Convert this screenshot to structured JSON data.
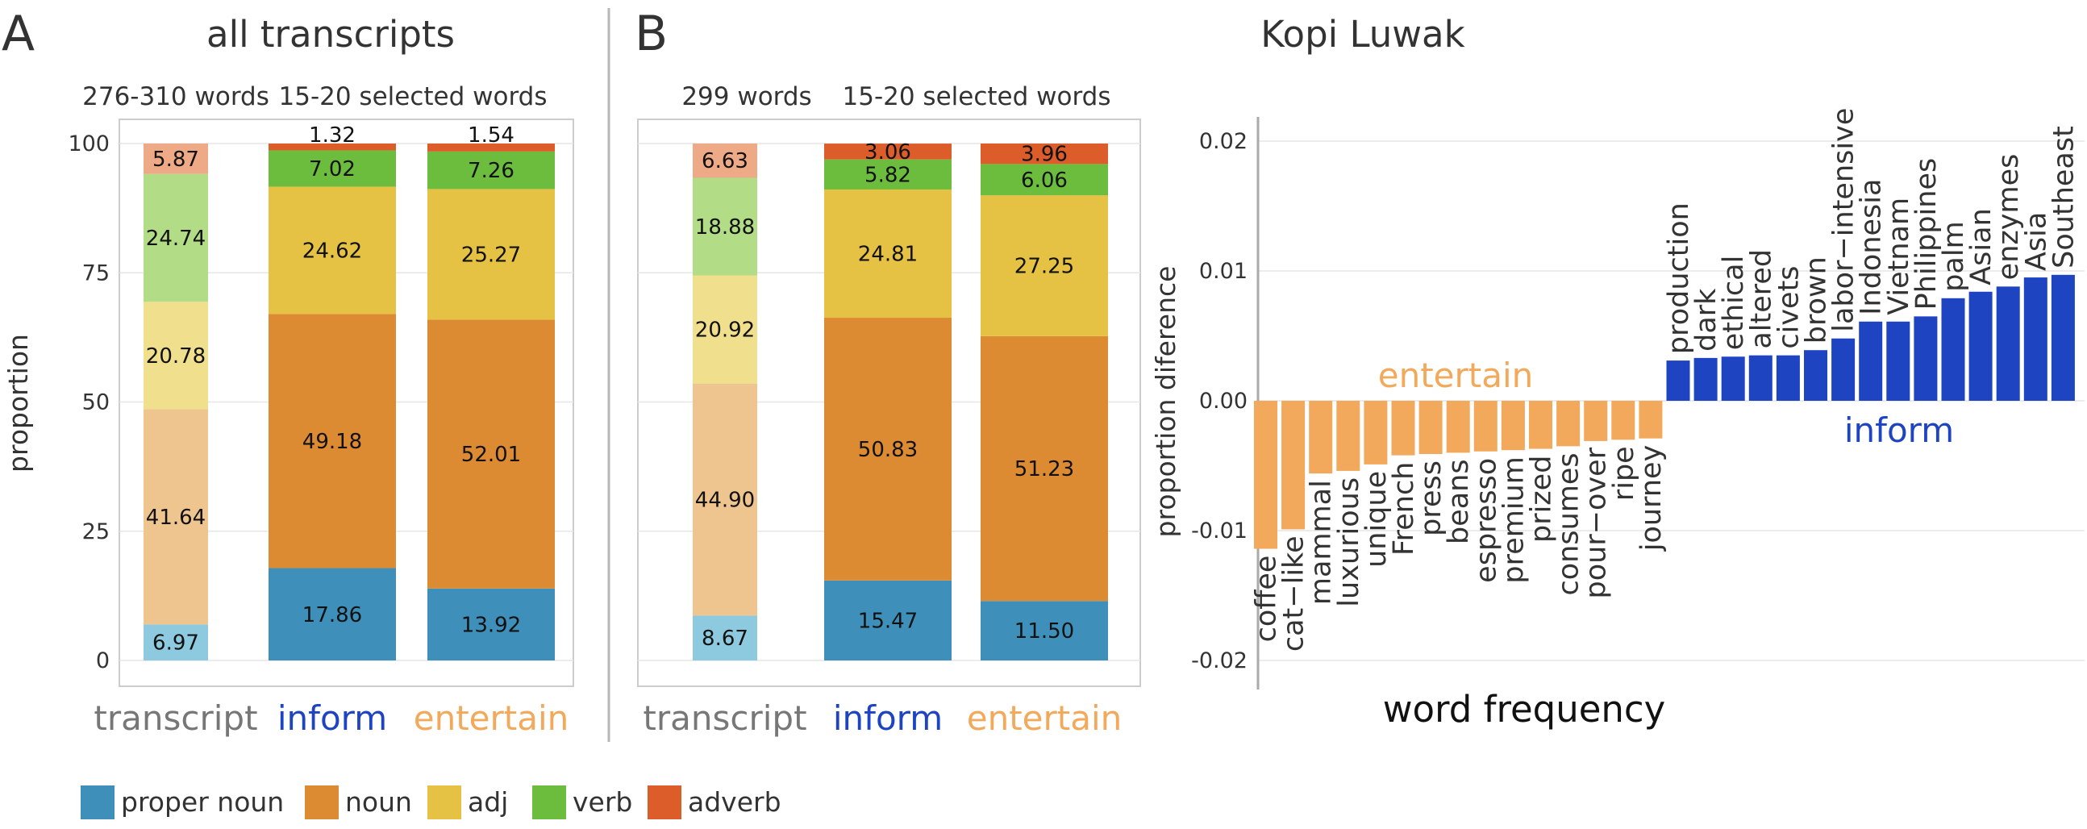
{
  "colors": {
    "proper_noun": "#3e8fba",
    "noun": "#dd8b33",
    "adj": "#e5c243",
    "verb": "#6cbd3d",
    "adverb": "#dc5d2a",
    "proper_noun_light": "#8ecadf",
    "noun_light": "#eec48f",
    "adj_light": "#f0df8c",
    "verb_light": "#b2dc86",
    "adverb_light": "#eeaa86",
    "inform": "#1e44c2",
    "entertain": "#f3a95c",
    "panel_border": "#cccccc",
    "grid": "#e6e6e6"
  },
  "panel_letters": {
    "A": "A",
    "B": "B"
  },
  "titles": {
    "A": "all transcripts",
    "C": "Kopi Luwak"
  },
  "legend": [
    {
      "key": "proper_noun",
      "label": "proper noun"
    },
    {
      "key": "noun",
      "label": "noun"
    },
    {
      "key": "adj",
      "label": "adj"
    },
    {
      "key": "verb",
      "label": "verb"
    },
    {
      "key": "adverb",
      "label": "adverb"
    }
  ],
  "chart_data": [
    {
      "type": "bar",
      "stacked": true,
      "panel": "A",
      "ylabel": "proportion",
      "ylim": [
        0,
        100
      ],
      "yticks": [
        0,
        25,
        50,
        75,
        100
      ],
      "subtitles": [
        "276-310 words",
        "15-20 selected words"
      ],
      "categories": [
        "transcript",
        "inform",
        "entertain"
      ],
      "series": [
        {
          "name": "proper noun",
          "key": "proper_noun",
          "values": [
            6.97,
            17.86,
            13.92
          ]
        },
        {
          "name": "noun",
          "key": "noun",
          "values": [
            41.64,
            49.18,
            52.01
          ]
        },
        {
          "name": "adj",
          "key": "adj",
          "values": [
            20.78,
            24.62,
            25.27
          ]
        },
        {
          "name": "verb",
          "key": "verb",
          "values": [
            24.74,
            7.02,
            7.26
          ]
        },
        {
          "name": "adverb",
          "key": "adverb",
          "values": [
            5.87,
            1.32,
            1.54
          ]
        }
      ]
    },
    {
      "type": "bar",
      "stacked": true,
      "panel": "B",
      "ylim": [
        0,
        100
      ],
      "subtitles": [
        "299 words",
        "15-20 selected words"
      ],
      "categories": [
        "transcript",
        "inform",
        "entertain"
      ],
      "series": [
        {
          "name": "proper noun",
          "key": "proper_noun",
          "values": [
            8.67,
            15.47,
            11.5
          ]
        },
        {
          "name": "noun",
          "key": "noun",
          "values": [
            44.9,
            50.83,
            51.23
          ]
        },
        {
          "name": "adj",
          "key": "adj",
          "values": [
            20.92,
            24.81,
            27.25
          ]
        },
        {
          "name": "verb",
          "key": "verb",
          "values": [
            18.88,
            5.82,
            6.06
          ]
        },
        {
          "name": "adverb",
          "key": "adverb",
          "values": [
            6.63,
            3.06,
            3.96
          ]
        }
      ]
    },
    {
      "type": "bar",
      "panel": "C",
      "title": "Kopi Luwak",
      "xlabel": "word frequency",
      "ylabel": "proportion diference",
      "ylim": [
        -0.02,
        0.02
      ],
      "yticks": [
        -0.02,
        -0.01,
        0.0,
        0.01,
        0.02
      ],
      "ytick_labels": [
        "-0.02",
        "-0.01",
        "0.00",
        "0.01",
        "0.02"
      ],
      "group_labels": {
        "entertain": "entertain",
        "inform": "inform"
      },
      "categories": [
        "coffee",
        "cat−like",
        "mammal",
        "luxurious",
        "unique",
        "French",
        "press",
        "beans",
        "espresso",
        "premium",
        "prized",
        "consumes",
        "pour−over",
        "ripe",
        "journey",
        "production",
        "dark",
        "ethical",
        "altered",
        "civets",
        "brown",
        "labor−intensive",
        "Indonesia",
        "Vietnam",
        "Philippines",
        "palm",
        "Asian",
        "enzymes",
        "Asia",
        "Southeast"
      ],
      "values": [
        -0.0114,
        -0.0099,
        -0.0056,
        -0.0054,
        -0.0049,
        -0.0042,
        -0.0041,
        -0.004,
        -0.0039,
        -0.0038,
        -0.0037,
        -0.0035,
        -0.0031,
        -0.003,
        -0.0029,
        0.0031,
        0.0033,
        0.0034,
        0.0035,
        0.0035,
        0.0039,
        0.0048,
        0.0061,
        0.0061,
        0.0065,
        0.0079,
        0.0084,
        0.0088,
        0.0095,
        0.0097
      ],
      "groups": [
        "entertain",
        "entertain",
        "entertain",
        "entertain",
        "entertain",
        "entertain",
        "entertain",
        "entertain",
        "entertain",
        "entertain",
        "entertain",
        "entertain",
        "entertain",
        "entertain",
        "entertain",
        "inform",
        "inform",
        "inform",
        "inform",
        "inform",
        "inform",
        "inform",
        "inform",
        "inform",
        "inform",
        "inform",
        "inform",
        "inform",
        "inform",
        "inform"
      ]
    }
  ]
}
